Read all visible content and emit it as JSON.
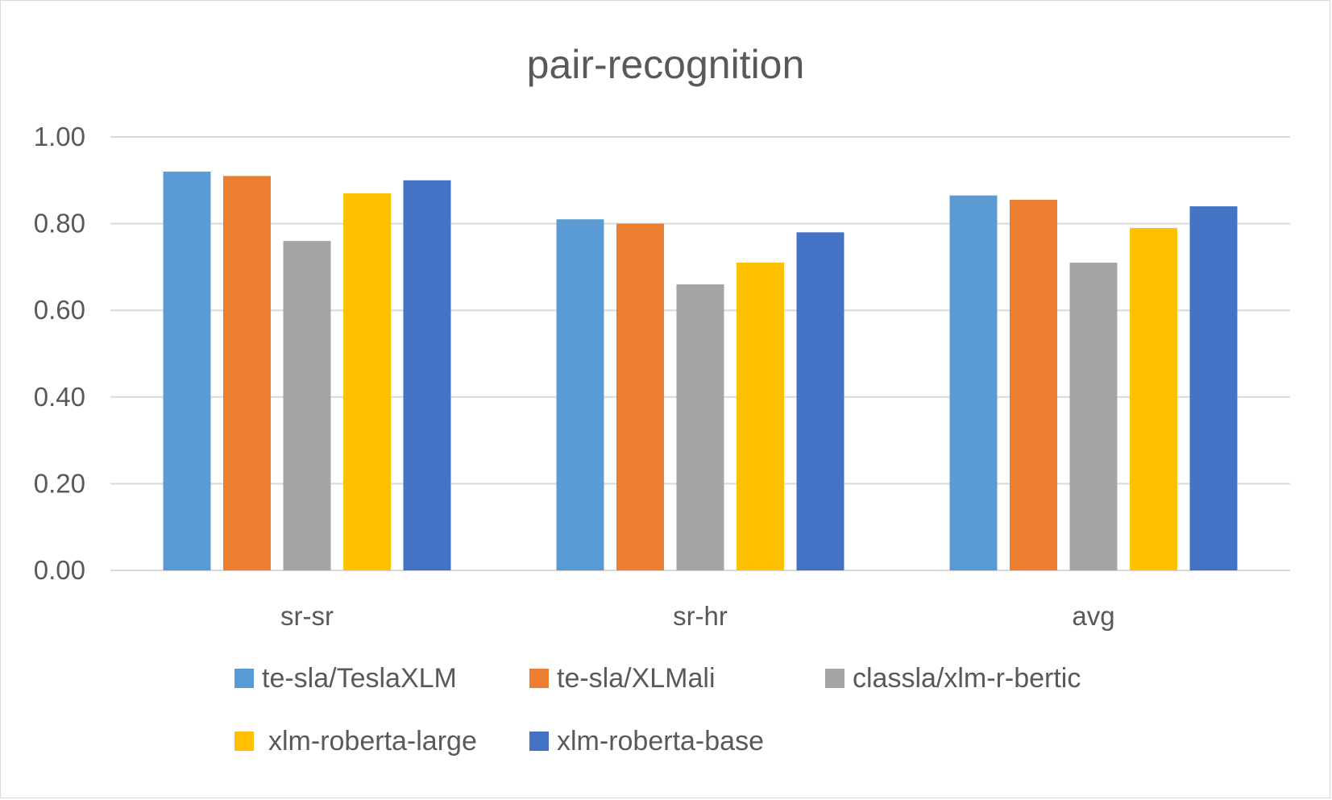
{
  "chart_data": {
    "type": "bar",
    "title": "pair-recognition",
    "xlabel": "",
    "ylabel": "",
    "categories": [
      "sr-sr",
      "sr-hr",
      "avg"
    ],
    "ylim": [
      0,
      1
    ],
    "yticks": [
      "0.00",
      "0.20",
      "0.40",
      "0.60",
      "0.80",
      "1.00"
    ],
    "grid": true,
    "legend_position": "bottom",
    "series": [
      {
        "name": "te-sla/TeslaXLM",
        "color": "#5B9BD5",
        "values": [
          0.92,
          0.81,
          0.865
        ]
      },
      {
        "name": "te-sla/XLMali",
        "color": "#ED7D31",
        "values": [
          0.91,
          0.8,
          0.855
        ]
      },
      {
        "name": "classla/xlm-r-bertic",
        "color": "#A5A5A5",
        "values": [
          0.76,
          0.66,
          0.71
        ]
      },
      {
        "name": "xlm-roberta-large",
        "color": "#FFC000",
        "values": [
          0.87,
          0.71,
          0.79
        ]
      },
      {
        "name": "xlm-roberta-base",
        "color": "#4472C4",
        "values": [
          0.9,
          0.78,
          0.84
        ]
      }
    ]
  }
}
